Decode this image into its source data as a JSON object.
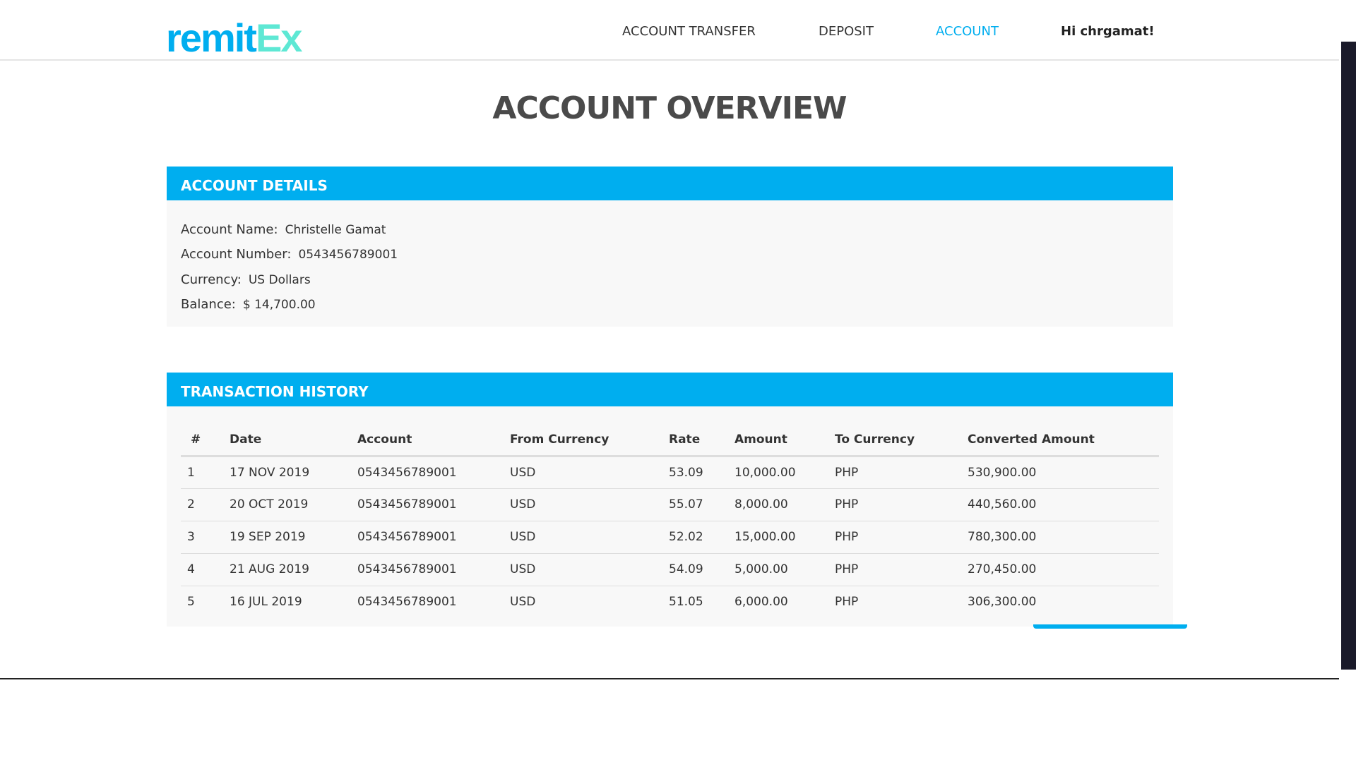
{
  "header": {
    "logo_part1": "remit",
    "logo_part2": "Ex",
    "logo_text": "remitEx",
    "nav": [
      {
        "label": "ACCOUNT TRANSFER"
      },
      {
        "label": "DEPOSIT"
      },
      {
        "label": "ACCOUNT",
        "active": true
      }
    ],
    "greeting": "Hi chrgamat!"
  },
  "page_title": "ACCOUNT OVERVIEW",
  "account_details": {
    "heading": "ACCOUNT DETAILS",
    "fields": [
      {
        "label": "Account Name:",
        "value": "Christelle Gamat"
      },
      {
        "label": "Account Number:",
        "value": "0543456789001"
      },
      {
        "label": "Currency:",
        "value": "US Dollars"
      },
      {
        "label": "Balance:",
        "value": "$ 14,700.00"
      }
    ]
  },
  "transaction_history": {
    "heading": "TRANSACTION HISTORY",
    "columns": [
      "#",
      "Date",
      "Account",
      "From Currency",
      "Rate",
      "Amount",
      "To Currency",
      "Converted Amount"
    ],
    "rows": [
      [
        "1",
        "17 NOV 2019",
        "0543456789001",
        "USD",
        "53.09",
        "10,000.00",
        "PHP",
        "530,900.00"
      ],
      [
        "2",
        "20 OCT 2019",
        "0543456789001",
        "USD",
        "55.07",
        "8,000.00",
        "PHP",
        "440,560.00"
      ],
      [
        "3",
        "19 SEP 2019",
        "0543456789001",
        "USD",
        "52.02",
        "15,000.00",
        "PHP",
        "780,300.00"
      ],
      [
        "4",
        "21 AUG 2019",
        "0543456789001",
        "USD",
        "54.09",
        "5,000.00",
        "PHP",
        "270,450.00"
      ],
      [
        "5",
        "16 JUL 2019",
        "0543456789001",
        "USD",
        "51.05",
        "6,000.00",
        "PHP",
        "306,300.00"
      ]
    ]
  },
  "colors": {
    "accent": "#00aeef",
    "logo_secondary": "#5ee8d4"
  }
}
